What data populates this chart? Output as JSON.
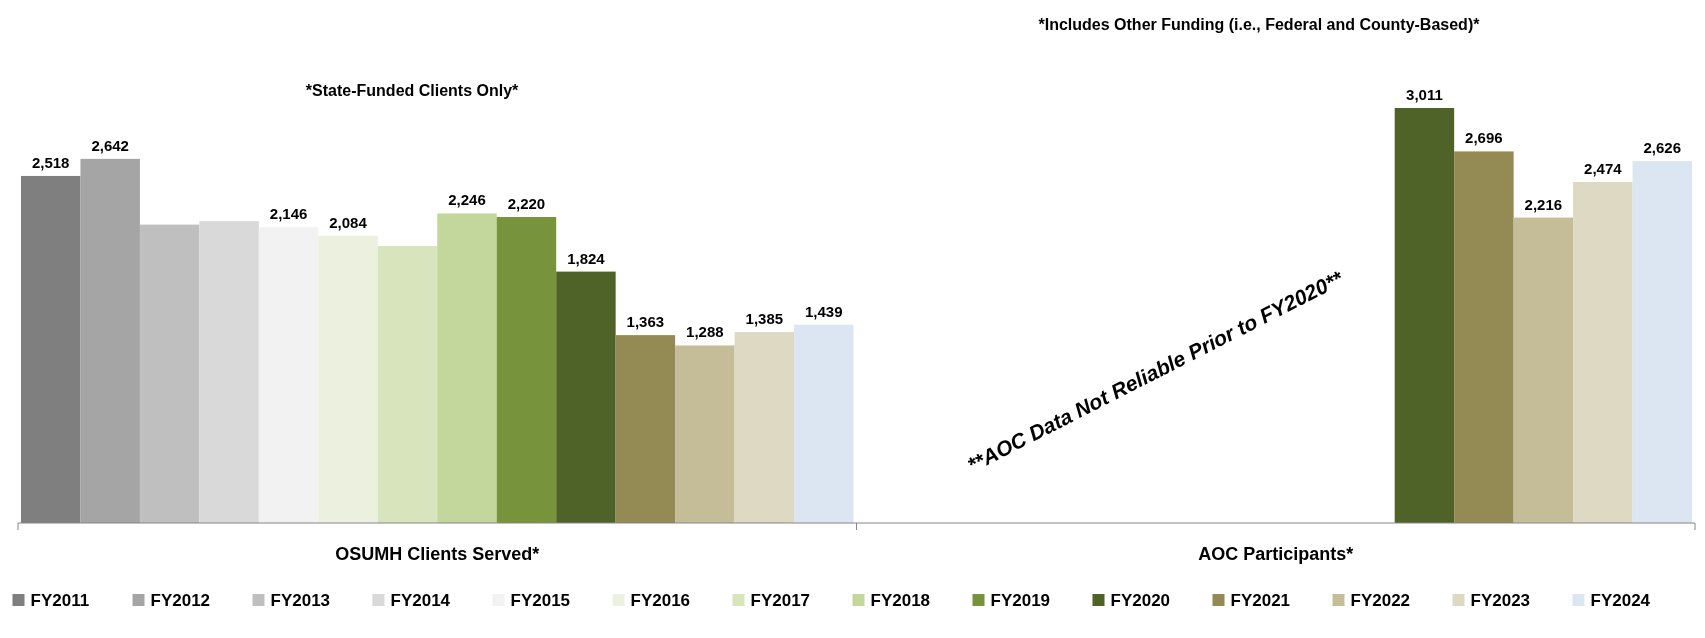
{
  "chart_data": {
    "type": "bar",
    "categories": [
      "OSUMH Clients Served*",
      "AOC Participants*"
    ],
    "series": [
      {
        "name": "FY2011",
        "color": "#7f7f7f",
        "values": [
          2518,
          null
        ],
        "value_labels": [
          "2,518",
          null
        ]
      },
      {
        "name": "FY2012",
        "color": "#a5a5a5",
        "values": [
          2642,
          null
        ],
        "value_labels": [
          "2,642",
          null
        ]
      },
      {
        "name": "FY2013",
        "color": "#bfbfbf",
        "values": [
          2165,
          null
        ],
        "value_labels": [
          null,
          null
        ]
      },
      {
        "name": "FY2014",
        "color": "#d9d9d9",
        "values": [
          2190,
          null
        ],
        "value_labels": [
          null,
          null
        ]
      },
      {
        "name": "FY2015",
        "color": "#f2f2f2",
        "values": [
          2146,
          null
        ],
        "value_labels": [
          "2,146",
          null
        ]
      },
      {
        "name": "FY2016",
        "color": "#ebf1de",
        "values": [
          2084,
          null
        ],
        "value_labels": [
          "2,084",
          null
        ]
      },
      {
        "name": "FY2017",
        "color": "#d7e4bc",
        "values": [
          2010,
          null
        ],
        "value_labels": [
          null,
          null
        ]
      },
      {
        "name": "FY2018",
        "color": "#c3d69b",
        "values": [
          2246,
          null
        ],
        "value_labels": [
          "2,246",
          null
        ]
      },
      {
        "name": "FY2019",
        "color": "#77933c",
        "values": [
          2220,
          null
        ],
        "value_labels": [
          "2,220",
          null
        ]
      },
      {
        "name": "FY2020",
        "color": "#4f6228",
        "values": [
          1824,
          3011
        ],
        "value_labels": [
          "1,824",
          "3,011"
        ]
      },
      {
        "name": "FY2021",
        "color": "#948a54",
        "values": [
          1363,
          2696
        ],
        "value_labels": [
          "1,363",
          "2,696"
        ]
      },
      {
        "name": "FY2022",
        "color": "#c4bd97",
        "values": [
          1288,
          2216
        ],
        "value_labels": [
          "1,288",
          "2,216"
        ]
      },
      {
        "name": "FY2023",
        "color": "#ddd9c3",
        "values": [
          1385,
          2474
        ],
        "value_labels": [
          "1,385",
          "2,474"
        ]
      },
      {
        "name": "FY2024",
        "color": "#dce6f2",
        "values": [
          1439,
          2626
        ],
        "value_labels": [
          "1,439",
          "2,626"
        ]
      }
    ],
    "relative": false,
    "legend": "bottom",
    "annotations": [
      "*State-Funded Clients Only*",
      "*Includes Other Funding (i.e., Federal and County-Based)*",
      "**AOC Data Not Reliable Prior to FY2020**"
    ]
  }
}
